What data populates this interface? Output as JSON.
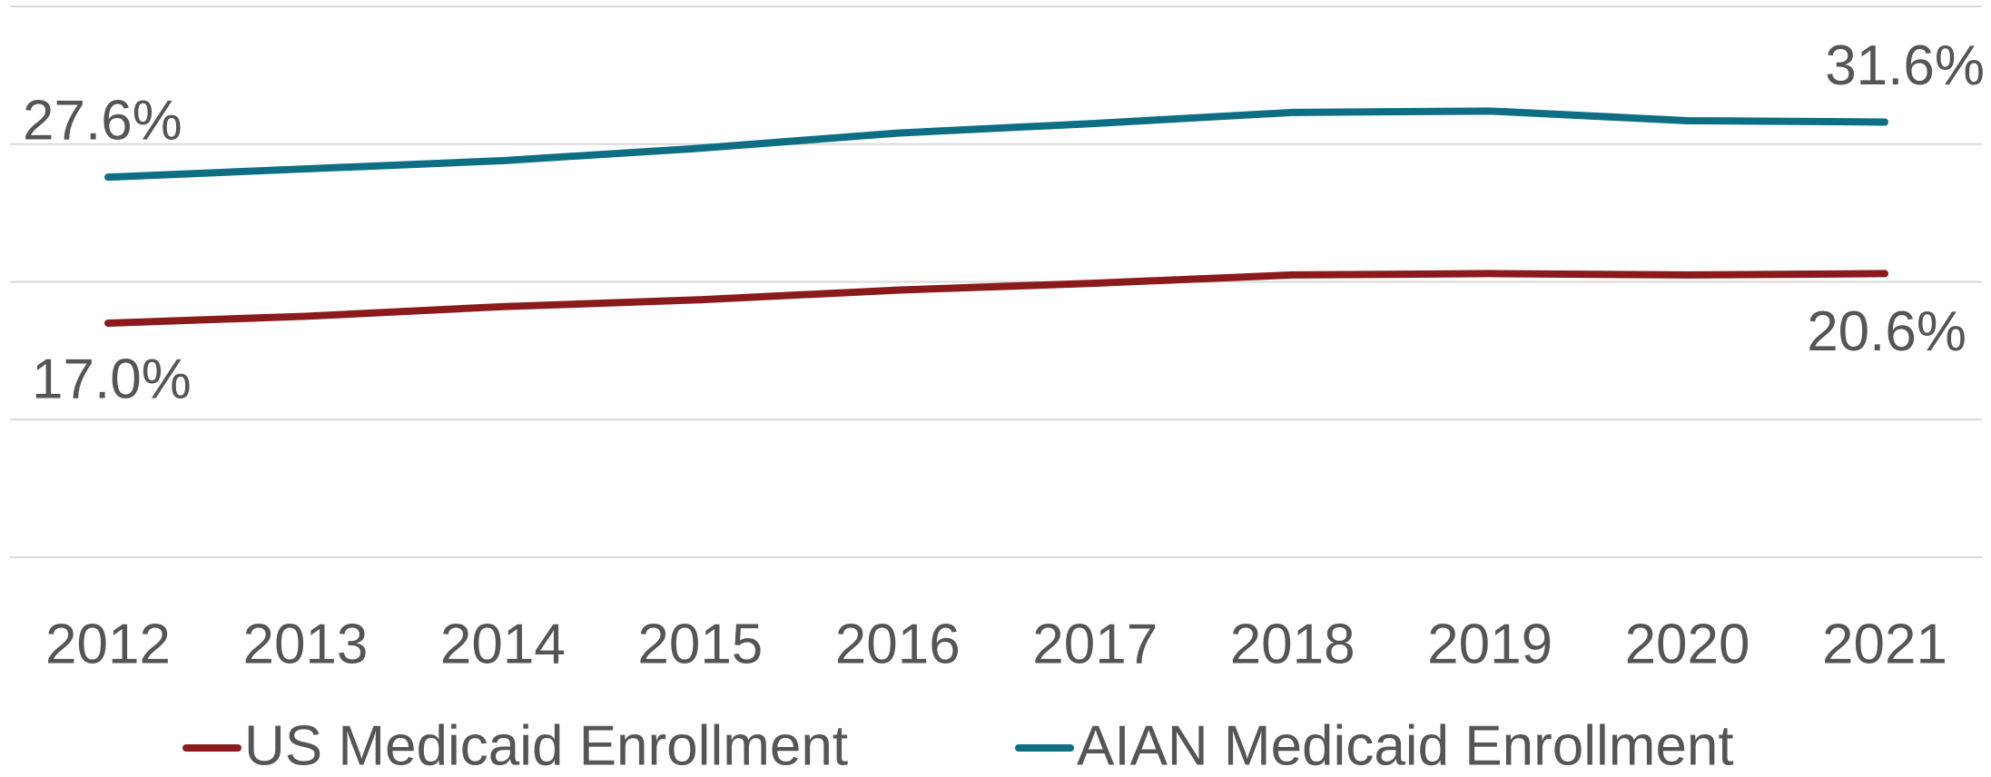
{
  "chart_data": {
    "type": "line",
    "categories": [
      "2012",
      "2013",
      "2014",
      "2015",
      "2016",
      "2017",
      "2018",
      "2019",
      "2020",
      "2021"
    ],
    "series": [
      {
        "name": "US Medicaid Enrollment",
        "color": "#8b1a1d",
        "values": [
          17.0,
          17.5,
          18.2,
          18.7,
          19.4,
          19.9,
          20.5,
          20.6,
          20.5,
          20.6
        ],
        "value_labels": [
          "17.0%",
          null,
          null,
          null,
          null,
          null,
          null,
          null,
          null,
          "20.6%"
        ]
      },
      {
        "name": "AIAN Medicaid Enrollment",
        "color": "#0e6e84",
        "values": [
          27.6,
          28.2,
          28.8,
          29.7,
          30.8,
          31.5,
          32.3,
          32.4,
          31.7,
          31.6
        ],
        "value_labels": [
          "27.6%",
          null,
          null,
          null,
          null,
          null,
          null,
          null,
          null,
          "31.6%"
        ]
      }
    ],
    "ylim": [
      0,
      40
    ],
    "yticks": [
      0,
      10,
      20,
      30,
      40
    ],
    "grid": true,
    "legend": "bottom"
  }
}
